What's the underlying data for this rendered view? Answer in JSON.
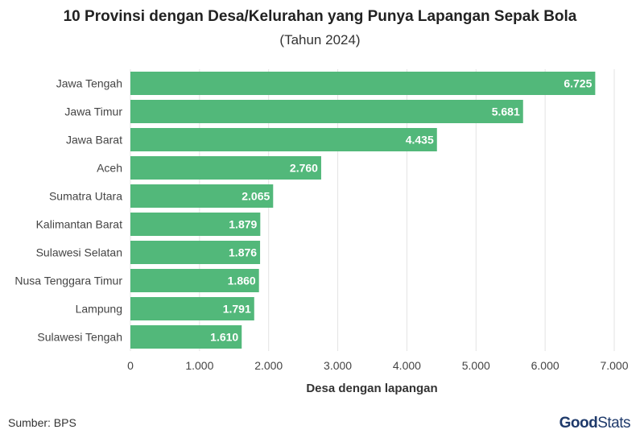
{
  "chart_data": {
    "type": "bar",
    "orientation": "horizontal",
    "title": "10 Provinsi dengan Desa/Kelurahan yang Punya Lapangan Sepak Bola",
    "subtitle": "(Tahun 2024)",
    "xlabel": "Desa dengan lapangan",
    "ylabel": "",
    "xlim": [
      0,
      7000
    ],
    "xticks": [
      0,
      1000,
      2000,
      3000,
      4000,
      5000,
      6000,
      7000
    ],
    "xtick_labels": [
      "0",
      "1.000",
      "2.000",
      "3.000",
      "4.000",
      "5.000",
      "6.000",
      "7.000"
    ],
    "categories": [
      "Jawa Tengah",
      "Jawa Timur",
      "Jawa Barat",
      "Aceh",
      "Sumatra Utara",
      "Kalimantan Barat",
      "Sulawesi Selatan",
      "Nusa Tenggara Timur",
      "Lampung",
      "Sulawesi Tengah"
    ],
    "values": [
      6725,
      5681,
      4435,
      2760,
      2065,
      1879,
      1876,
      1860,
      1791,
      1610
    ],
    "value_labels": [
      "6.725",
      "5.681",
      "4.435",
      "2.760",
      "2.065",
      "1.879",
      "1.876",
      "1.860",
      "1.791",
      "1.610"
    ],
    "bar_color": "#52b87a",
    "grid": true
  },
  "footer": {
    "source": "Sumber: BPS",
    "brand_good": "Good",
    "brand_stats": "Stats"
  }
}
